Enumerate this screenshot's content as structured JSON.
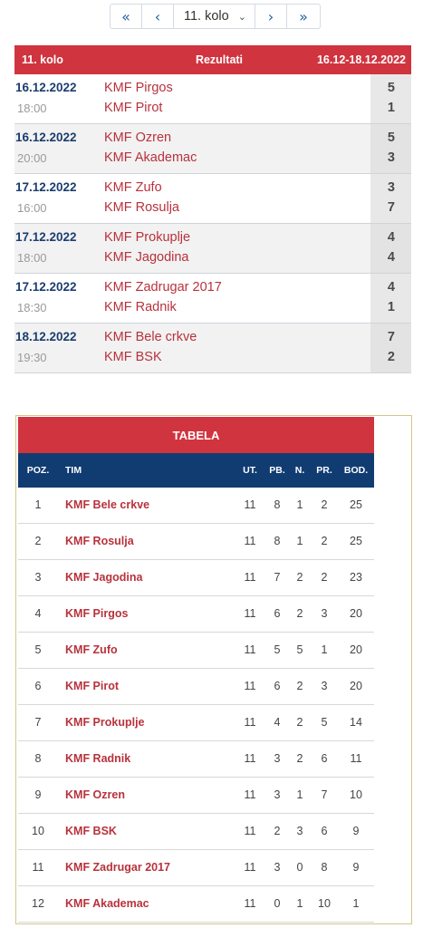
{
  "pager": {
    "first": "«",
    "prev": "‹",
    "selected": "11. kolo",
    "next": "›",
    "last": "»"
  },
  "results": {
    "header": {
      "round": "11. kolo",
      "title": "Rezultati",
      "dates": "16.12-18.12.2022"
    },
    "matches": [
      {
        "date": "16.12.2022",
        "time": "18:00",
        "home": "KMF Pirgos",
        "away": "KMF Pirot",
        "home_score": "5",
        "away_score": "1"
      },
      {
        "date": "16.12.2022",
        "time": "20:00",
        "home": "KMF Ozren",
        "away": "KMF Akademac",
        "home_score": "5",
        "away_score": "3"
      },
      {
        "date": "17.12.2022",
        "time": "16:00",
        "home": "KMF Zufo",
        "away": "KMF Rosulja",
        "home_score": "3",
        "away_score": "7"
      },
      {
        "date": "17.12.2022",
        "time": "18:00",
        "home": "KMF Prokuplje",
        "away": "KMF Jagodina",
        "home_score": "4",
        "away_score": "4"
      },
      {
        "date": "17.12.2022",
        "time": "18:30",
        "home": "KMF Zadrugar 2017",
        "away": "KMF Radnik",
        "home_score": "4",
        "away_score": "1"
      },
      {
        "date": "18.12.2022",
        "time": "19:30",
        "home": "KMF Bele crkve",
        "away": "KMF BSK",
        "home_score": "7",
        "away_score": "2"
      }
    ]
  },
  "standings": {
    "title": "TABELA",
    "columns": {
      "poz": "POZ.",
      "tim": "TIM",
      "ut": "UT.",
      "pb": "PB.",
      "n": "N.",
      "pr": "PR.",
      "bod": "BOD."
    },
    "rows": [
      {
        "poz": "1",
        "tim": "KMF Bele crkve",
        "ut": "11",
        "pb": "8",
        "n": "1",
        "pr": "2",
        "bod": "25"
      },
      {
        "poz": "2",
        "tim": "KMF Rosulja",
        "ut": "11",
        "pb": "8",
        "n": "1",
        "pr": "2",
        "bod": "25"
      },
      {
        "poz": "3",
        "tim": "KMF Jagodina",
        "ut": "11",
        "pb": "7",
        "n": "2",
        "pr": "2",
        "bod": "23"
      },
      {
        "poz": "4",
        "tim": "KMF Pirgos",
        "ut": "11",
        "pb": "6",
        "n": "2",
        "pr": "3",
        "bod": "20"
      },
      {
        "poz": "5",
        "tim": "KMF Zufo",
        "ut": "11",
        "pb": "5",
        "n": "5",
        "pr": "1",
        "bod": "20"
      },
      {
        "poz": "6",
        "tim": "KMF Pirot",
        "ut": "11",
        "pb": "6",
        "n": "2",
        "pr": "3",
        "bod": "20"
      },
      {
        "poz": "7",
        "tim": "KMF Prokuplje",
        "ut": "11",
        "pb": "4",
        "n": "2",
        "pr": "5",
        "bod": "14"
      },
      {
        "poz": "8",
        "tim": "KMF Radnik",
        "ut": "11",
        "pb": "3",
        "n": "2",
        "pr": "6",
        "bod": "11"
      },
      {
        "poz": "9",
        "tim": "KMF Ozren",
        "ut": "11",
        "pb": "3",
        "n": "1",
        "pr": "7",
        "bod": "10"
      },
      {
        "poz": "10",
        "tim": "KMF BSK",
        "ut": "11",
        "pb": "2",
        "n": "3",
        "pr": "6",
        "bod": "9"
      },
      {
        "poz": "11",
        "tim": "KMF Zadrugar 2017",
        "ut": "11",
        "pb": "3",
        "n": "0",
        "pr": "8",
        "bod": "9"
      },
      {
        "poz": "12",
        "tim": "KMF Akademac",
        "ut": "11",
        "pb": "0",
        "n": "1",
        "pr": "10",
        "bod": "1"
      }
    ]
  }
}
